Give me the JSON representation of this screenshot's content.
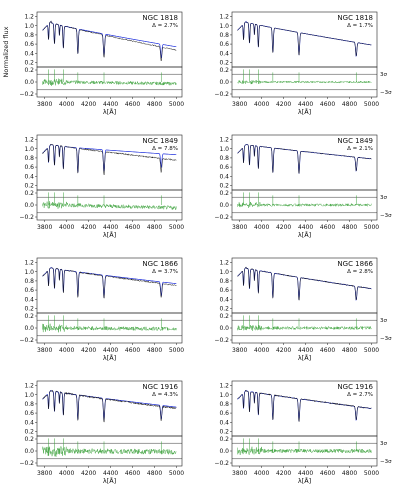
{
  "figure": {
    "ylabel": "Normalized flux",
    "xlabel": "λ[Å]",
    "sigma_upper": "3σ",
    "sigma_lower": "−3σ"
  },
  "chart_data": {
    "type": "line",
    "rows": 4,
    "cols": 2,
    "x_ticks": [
      "3800",
      "4000",
      "4200",
      "4400",
      "4600",
      "4800",
      "5000"
    ],
    "xlim": [
      3730,
      5050
    ],
    "top_y_ticks": [
      "0.2",
      "0.4",
      "0.6",
      "0.8",
      "1.0",
      "1.2"
    ],
    "top_ylim": [
      0.1,
      1.3
    ],
    "bottom_y_ticks": [
      "0.2",
      "0.0",
      "−0.2"
    ],
    "bottom_ylim": [
      -0.25,
      0.25
    ],
    "sigma_level": 0.13,
    "series": [
      {
        "name": "observed",
        "color": "#111111"
      },
      {
        "name": "model",
        "color": "#2233dd"
      },
      {
        "name": "residual",
        "color": "#3aa03a"
      }
    ],
    "panels": [
      {
        "title": "NGC 1818",
        "delta": "Δ = 2.7%",
        "continuum_end": 0.47,
        "model_offset": 0.07,
        "noise": 0.025
      },
      {
        "title": "NGC 1818",
        "delta": "Δ = 1.7%",
        "continuum_end": 0.58,
        "model_offset": 0.0,
        "noise": 0.015
      },
      {
        "title": "NGC 1849",
        "delta": "Δ = 7.8%",
        "continuum_end": 0.75,
        "model_offset": 0.12,
        "noise": 0.03
      },
      {
        "title": "NGC 1849",
        "delta": "Δ = 2.1%",
        "continuum_end": 0.78,
        "model_offset": 0.0,
        "noise": 0.02
      },
      {
        "title": "NGC 1866",
        "delta": "Δ = 3.7%",
        "continuum_end": 0.7,
        "model_offset": 0.04,
        "noise": 0.03
      },
      {
        "title": "NGC 1866",
        "delta": "Δ = 2.8%",
        "continuum_end": 0.63,
        "model_offset": 0.0,
        "noise": 0.025
      },
      {
        "title": "NGC 1916",
        "delta": "Δ = 4.3%",
        "continuum_end": 0.7,
        "model_offset": 0.03,
        "noise": 0.04
      },
      {
        "title": "NGC 1916",
        "delta": "Δ = 2.7%",
        "continuum_end": 0.7,
        "model_offset": 0.0,
        "noise": 0.03
      }
    ],
    "absorption_lines": [
      3835,
      3889,
      3970,
      4102,
      4340,
      4861
    ]
  }
}
